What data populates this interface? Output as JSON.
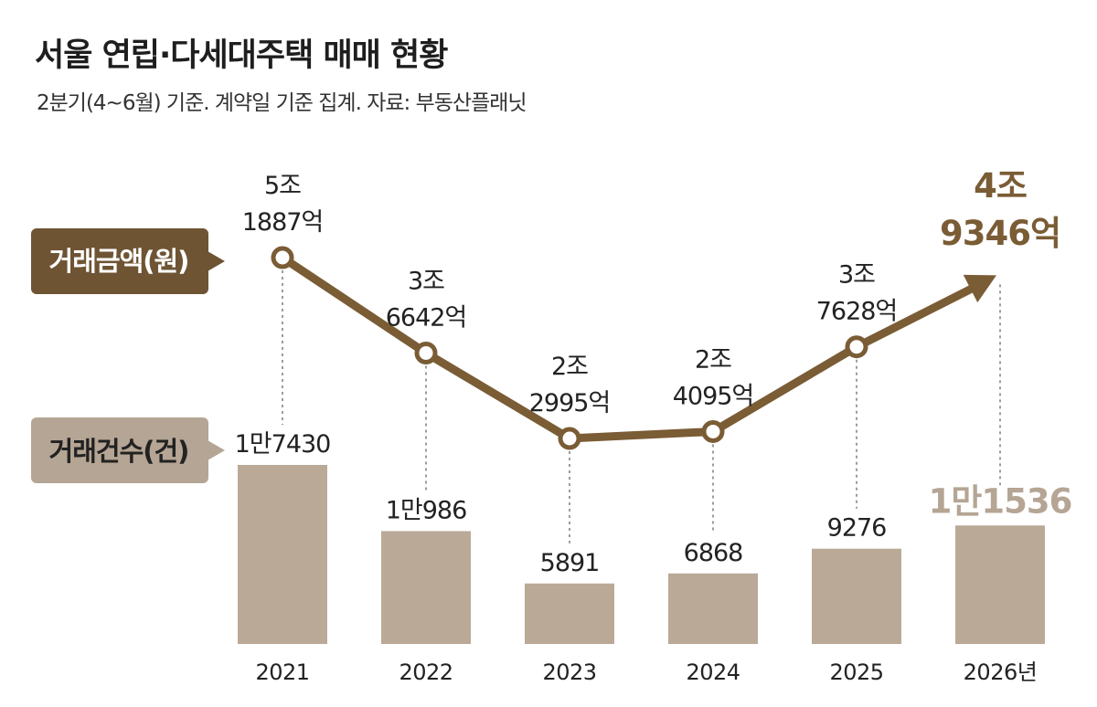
{
  "header": {
    "title": "서울 연립·다세대주택 매매 현황",
    "subtitle": "2분기(4~6월) 기준. 계약일 기준 집계. 자료: 부동산플래닛"
  },
  "legend": {
    "amount": "거래금액(원)",
    "count": "거래건수(건)"
  },
  "colors": {
    "amount_line": "#7a5c35",
    "amount_label_bg": "#6e5433",
    "count_bar": "#bba998",
    "count_label_bg": "#b5a594",
    "highlight_amount": "#7a5c35",
    "highlight_count": "#b5a594"
  },
  "chart_data": {
    "type": "bar+line",
    "categories": [
      "2021",
      "2022",
      "2023",
      "2024",
      "2025",
      "2026년"
    ],
    "series": [
      {
        "name": "거래금액(원)",
        "type": "line",
        "values": [
          51887,
          36642,
          22995,
          24095,
          37628,
          49346
        ],
        "labels": [
          [
            "5조",
            "1887억"
          ],
          [
            "3조",
            "6642억"
          ],
          [
            "2조",
            "2995억"
          ],
          [
            "2조",
            "4095억"
          ],
          [
            "3조",
            "7628억"
          ],
          [
            "4조",
            "9346억"
          ]
        ]
      },
      {
        "name": "거래건수(건)",
        "type": "bar",
        "values": [
          17430,
          10986,
          5891,
          6868,
          9276,
          11536
        ],
        "labels": [
          "1만7430",
          "1만986",
          "5891",
          "6868",
          "9276",
          "1만1536"
        ]
      }
    ],
    "highlight_last": true
  }
}
